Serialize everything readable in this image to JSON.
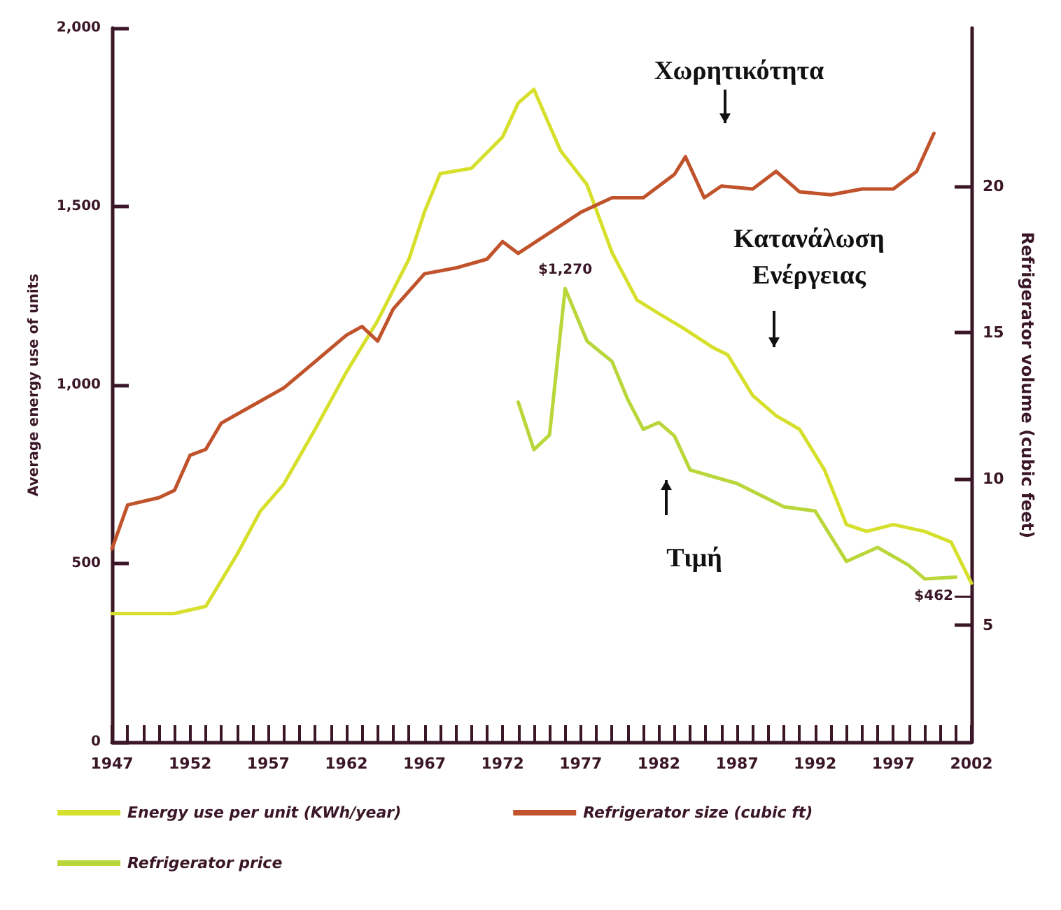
{
  "chart_data": {
    "type": "line",
    "ylabel": "Average energy use of units",
    "y2label": "Refrigerator volume (cubic feet)",
    "xlim": [
      1947,
      2002
    ],
    "xticks": [
      1947,
      1952,
      1957,
      1962,
      1967,
      1972,
      1977,
      1982,
      1987,
      1992,
      1997,
      2002
    ],
    "ylim": [
      0,
      2000
    ],
    "yticks": [
      0,
      500,
      {
        "value": 1000,
        "label": "1,000"
      },
      {
        "value": 1500,
        "label": "1,500"
      },
      {
        "value": 2000,
        "label": "2,000"
      }
    ],
    "y2lim": [
      1,
      25.4
    ],
    "y2ticks": [
      5,
      10,
      15,
      20
    ],
    "grid": false,
    "legend": "bottom",
    "marker": "none",
    "line_style": "solid",
    "series": [
      {
        "name": "Energy use per unit (KWh/year)",
        "color": "#d6e02c",
        "x": [
          1947,
          1951,
          1953,
          1955,
          1956.5,
          1958,
          1960,
          1962,
          1964,
          1966,
          1967,
          1968,
          1970,
          1972,
          1973,
          1974,
          1975.7,
          1977.4,
          1979,
          1980.6,
          1982,
          1983.5,
          1985.5,
          1986.4,
          1988,
          1989.5,
          1991,
          1992.6,
          1994,
          1995.3,
          1997,
          1999,
          2000.7,
          2002
        ],
        "values": [
          360,
          360,
          380,
          525,
          647,
          723,
          876,
          1036,
          1180,
          1352,
          1485,
          1592,
          1607,
          1695,
          1790,
          1828,
          1657,
          1561,
          1371,
          1238,
          1200,
          1161,
          1104,
          1085,
          971,
          914,
          876,
          762,
          609,
          590,
          609,
          590,
          560,
          445
        ]
      },
      {
        "name": "Refrigerator size (cubic ft)",
        "color": "#c0532c",
        "axis": "y2",
        "x": [
          1947,
          1948,
          1950,
          1951,
          1952,
          1953,
          1954,
          1956,
          1958,
          1960,
          1962,
          1963,
          1964,
          1965,
          1967,
          1969,
          1971,
          1972,
          1973,
          1975,
          1977,
          1979,
          1981,
          1983,
          1983.7,
          1984.9,
          1986,
          1988,
          1989.5,
          1991,
          1993,
          1995,
          1997,
          1998.5,
          1999.6
        ],
        "values": [
          7.6,
          9.1,
          9.35,
          9.6,
          10.8,
          11.0,
          11.9,
          12.5,
          13.1,
          14.0,
          14.9,
          15.2,
          14.7,
          15.8,
          17.0,
          17.2,
          17.5,
          18.1,
          17.7,
          18.4,
          19.1,
          19.6,
          19.6,
          20.4,
          21.0,
          19.6,
          20.0,
          19.9,
          20.5,
          19.8,
          19.7,
          19.9,
          19.9,
          20.5,
          21.8
        ]
      },
      {
        "name": "Refrigerator price",
        "color": "#b9d63a",
        "x": [
          1973,
          1974,
          1975,
          1976,
          1977.4,
          1979,
          1980,
          1981,
          1982,
          1983,
          1984,
          1985.5,
          1987,
          1990,
          1992,
          1994,
          1996,
          1998,
          1999,
          2001
        ],
        "values": [
          952,
          819,
          860,
          1270,
          1123,
          1066,
          960,
          876,
          895,
          857,
          762,
          743,
          724,
          659,
          647,
          506,
          545,
          495,
          457,
          462
        ]
      }
    ],
    "annotations": [
      "Χωρητικότητα",
      "Κατανάλωση\nΕνέργειας",
      "Τιμή",
      {
        "text": "$1,270",
        "x": 1976,
        "y": 1270
      },
      {
        "text": "$462",
        "x": 2001,
        "y": 462
      }
    ]
  }
}
